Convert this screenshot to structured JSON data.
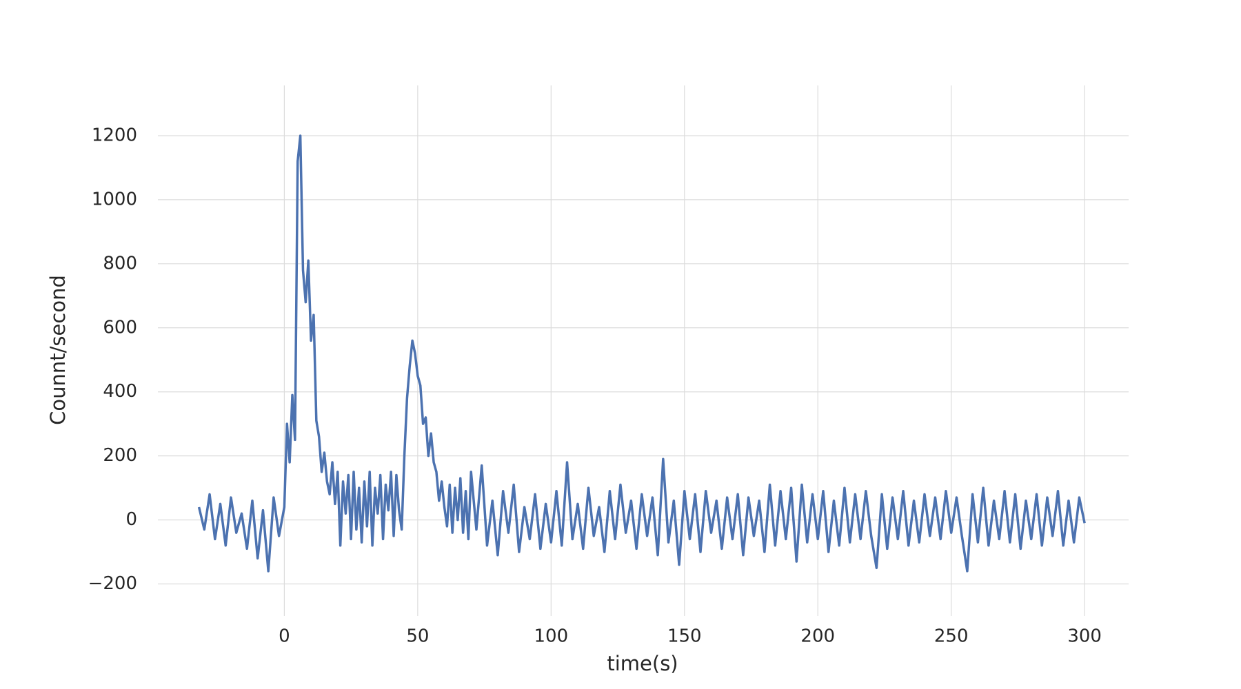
{
  "chart_data": {
    "type": "line",
    "xlabel": "time(s)",
    "ylabel": "Counnt/second",
    "color": "#4c72b0",
    "grid": true,
    "xlim": [
      -47.4,
      316.5
    ],
    "ylim": [
      -300,
      1357
    ],
    "xticks": [
      0,
      50,
      100,
      150,
      200,
      250,
      300
    ],
    "yticks": [
      {
        "value": -200,
        "label": "−200"
      },
      0,
      200,
      400,
      600,
      800,
      1000,
      1200
    ],
    "x": [
      -32,
      -30,
      -28,
      -26,
      -24,
      -22,
      -20,
      -18,
      -16,
      -14,
      -12,
      -10,
      -8,
      -6,
      -4,
      -2,
      0,
      1,
      2,
      3,
      4,
      5,
      6,
      7,
      8,
      9,
      10,
      11,
      12,
      13,
      14,
      15,
      16,
      17,
      18,
      19,
      20,
      21,
      22,
      23,
      24,
      25,
      26,
      27,
      28,
      29,
      30,
      31,
      32,
      33,
      34,
      35,
      36,
      37,
      38,
      39,
      40,
      41,
      42,
      43,
      44,
      45,
      46,
      47,
      48,
      49,
      50,
      51,
      52,
      53,
      54,
      55,
      56,
      57,
      58,
      59,
      60,
      61,
      62,
      63,
      64,
      65,
      66,
      67,
      68,
      69,
      70,
      72,
      74,
      76,
      78,
      80,
      82,
      84,
      86,
      88,
      90,
      92,
      94,
      96,
      98,
      100,
      102,
      104,
      106,
      108,
      110,
      112,
      114,
      116,
      118,
      120,
      122,
      124,
      126,
      128,
      130,
      132,
      134,
      136,
      138,
      140,
      142,
      144,
      146,
      148,
      150,
      152,
      154,
      156,
      158,
      160,
      162,
      164,
      166,
      168,
      170,
      172,
      174,
      176,
      178,
      180,
      182,
      184,
      186,
      188,
      190,
      192,
      194,
      196,
      198,
      200,
      202,
      204,
      206,
      208,
      210,
      212,
      214,
      216,
      218,
      220,
      222,
      224,
      226,
      228,
      230,
      232,
      234,
      236,
      238,
      240,
      242,
      244,
      246,
      248,
      250,
      252,
      254,
      256,
      258,
      260,
      262,
      264,
      266,
      268,
      270,
      272,
      274,
      276,
      278,
      280,
      282,
      284,
      286,
      288,
      290,
      292,
      294,
      296,
      298,
      300
    ],
    "values": [
      40,
      -30,
      80,
      -60,
      50,
      -80,
      70,
      -40,
      20,
      -90,
      60,
      -120,
      30,
      -160,
      70,
      -50,
      40,
      300,
      180,
      390,
      250,
      1120,
      1200,
      780,
      680,
      810,
      560,
      640,
      310,
      260,
      150,
      210,
      120,
      80,
      180,
      50,
      150,
      -80,
      120,
      20,
      140,
      -60,
      150,
      -30,
      100,
      -70,
      120,
      -20,
      150,
      -80,
      100,
      20,
      140,
      -60,
      110,
      30,
      150,
      -50,
      140,
      30,
      -30,
      200,
      380,
      480,
      560,
      520,
      450,
      420,
      300,
      320,
      200,
      270,
      180,
      150,
      60,
      120,
      40,
      -20,
      110,
      -40,
      100,
      0,
      130,
      -40,
      90,
      -60,
      150,
      -30,
      170,
      -80,
      60,
      -110,
      90,
      -40,
      110,
      -100,
      40,
      -60,
      80,
      -90,
      50,
      -70,
      90,
      -80,
      180,
      -60,
      50,
      -90,
      100,
      -50,
      40,
      -100,
      90,
      -60,
      110,
      -40,
      60,
      -90,
      80,
      -50,
      70,
      -110,
      190,
      -70,
      60,
      -140,
      90,
      -60,
      80,
      -100,
      90,
      -40,
      60,
      -90,
      70,
      -60,
      80,
      -110,
      70,
      -50,
      60,
      -100,
      110,
      -80,
      90,
      -60,
      100,
      -130,
      110,
      -70,
      80,
      -60,
      90,
      -100,
      60,
      -80,
      100,
      -70,
      80,
      -60,
      90,
      -50,
      -150,
      80,
      -90,
      70,
      -60,
      90,
      -80,
      60,
      -70,
      80,
      -50,
      70,
      -60,
      90,
      -40,
      70,
      -50,
      -160,
      80,
      -70,
      100,
      -80,
      60,
      -60,
      90,
      -70,
      80,
      -90,
      60,
      -60,
      80,
      -80,
      70,
      -50,
      90,
      -80,
      60,
      -70,
      70,
      -10
    ]
  }
}
